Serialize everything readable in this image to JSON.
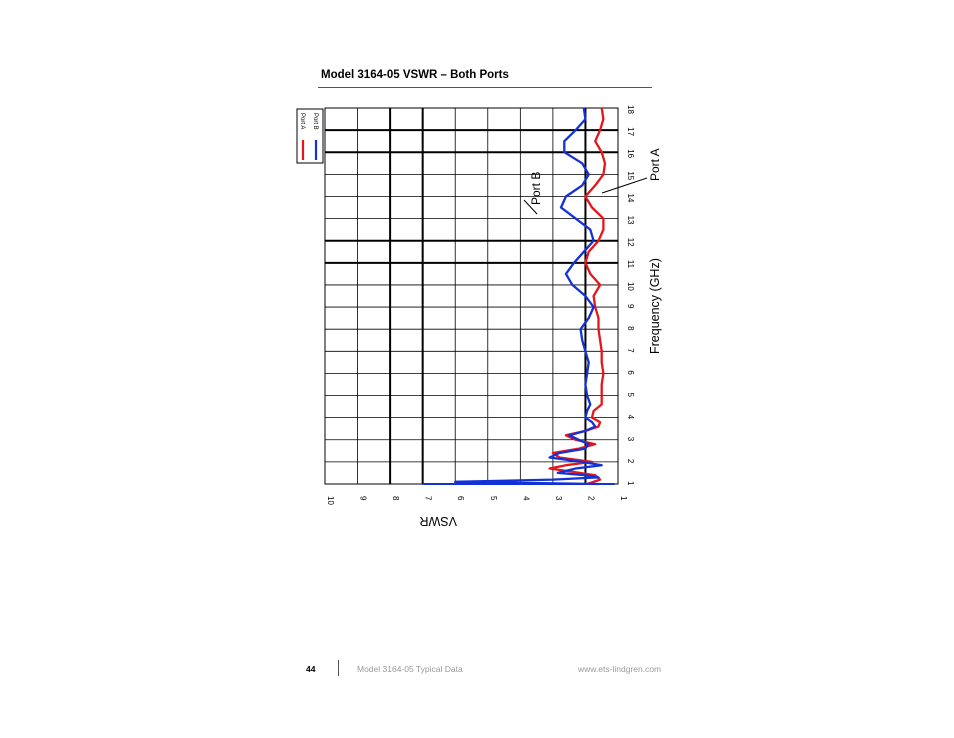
{
  "page": {
    "title": "Model 3164-05 VSWR – Both Ports",
    "footer": {
      "page_number": "44",
      "doc_name": "Model 3164-05 Typical Data",
      "website": "www.ets-lindgren.com"
    }
  },
  "chart_data": {
    "type": "line",
    "orientation": "rotated 90° (frequency axis vertical, VSWR axis horizontal, VSWR increasing to the left)",
    "title": "Model 3164-05 VSWR – Both Ports",
    "xlabel": "Frequency (GHz)",
    "ylabel": "VSWR",
    "xlim": [
      1,
      18
    ],
    "ylim": [
      1,
      10
    ],
    "x_ticks": [
      "1",
      "2",
      "3",
      "4",
      "5",
      "6",
      "7",
      "8",
      "9",
      "10",
      "11",
      "12",
      "13",
      "14",
      "15",
      "16",
      "17",
      "18"
    ],
    "y_ticks": [
      "10",
      "9",
      "8",
      "7",
      "6",
      "5",
      "4",
      "3",
      "2",
      "1"
    ],
    "grid": true,
    "legend": {
      "position": "top-left",
      "entries": [
        "Port A",
        "Port B"
      ]
    },
    "annotations": [
      "Port B",
      "Port A"
    ],
    "colors": {
      "Port A": "#e8141c",
      "Port B": "#1232d8"
    },
    "series": [
      {
        "name": "Port A",
        "points": [
          [
            1.0,
            1.95
          ],
          [
            1.2,
            1.55
          ],
          [
            1.4,
            1.7
          ],
          [
            1.55,
            2.4
          ],
          [
            1.7,
            3.1
          ],
          [
            1.85,
            2.6
          ],
          [
            2.0,
            1.8
          ],
          [
            2.2,
            2.8
          ],
          [
            2.4,
            3.0
          ],
          [
            2.6,
            2.2
          ],
          [
            2.8,
            1.7
          ],
          [
            3.0,
            2.3
          ],
          [
            3.2,
            2.6
          ],
          [
            3.4,
            2.0
          ],
          [
            3.6,
            1.6
          ],
          [
            3.8,
            1.55
          ],
          [
            4.0,
            1.8
          ],
          [
            4.3,
            1.75
          ],
          [
            4.6,
            1.5
          ],
          [
            5.0,
            1.5
          ],
          [
            5.5,
            1.5
          ],
          [
            6.0,
            1.45
          ],
          [
            6.5,
            1.5
          ],
          [
            7.0,
            1.5
          ],
          [
            7.5,
            1.55
          ],
          [
            8.0,
            1.6
          ],
          [
            8.5,
            1.6
          ],
          [
            9.0,
            1.7
          ],
          [
            9.5,
            1.75
          ],
          [
            10.0,
            1.55
          ],
          [
            10.5,
            1.85
          ],
          [
            11.0,
            2.0
          ],
          [
            11.5,
            1.9
          ],
          [
            12.0,
            1.6
          ],
          [
            12.5,
            1.45
          ],
          [
            13.0,
            1.45
          ],
          [
            13.5,
            1.8
          ],
          [
            14.0,
            2.0
          ],
          [
            14.5,
            1.7
          ],
          [
            15.0,
            1.45
          ],
          [
            15.5,
            1.4
          ],
          [
            16.0,
            1.5
          ],
          [
            16.5,
            1.7
          ],
          [
            17.0,
            1.55
          ],
          [
            17.5,
            1.45
          ],
          [
            18.0,
            1.5
          ]
        ]
      },
      {
        "name": "Port B",
        "points": [
          [
            1.0,
            1.6
          ],
          [
            1.1,
            6.0
          ],
          [
            1.2,
            3.0
          ],
          [
            1.3,
            1.6
          ],
          [
            1.4,
            2.0
          ],
          [
            1.5,
            2.85
          ],
          [
            1.7,
            2.3
          ],
          [
            1.85,
            1.5
          ],
          [
            2.0,
            2.1
          ],
          [
            2.2,
            3.1
          ],
          [
            2.4,
            2.8
          ],
          [
            2.6,
            2.0
          ],
          [
            2.8,
            1.9
          ],
          [
            3.0,
            2.2
          ],
          [
            3.2,
            2.5
          ],
          [
            3.4,
            2.0
          ],
          [
            3.6,
            1.7
          ],
          [
            3.8,
            1.8
          ],
          [
            4.0,
            2.0
          ],
          [
            4.3,
            1.95
          ],
          [
            4.6,
            1.85
          ],
          [
            5.0,
            1.95
          ],
          [
            5.5,
            2.0
          ],
          [
            6.0,
            1.95
          ],
          [
            6.5,
            1.9
          ],
          [
            7.0,
            2.0
          ],
          [
            7.5,
            2.1
          ],
          [
            8.0,
            2.15
          ],
          [
            8.5,
            1.9
          ],
          [
            9.0,
            1.75
          ],
          [
            9.5,
            2.0
          ],
          [
            10.0,
            2.4
          ],
          [
            10.5,
            2.6
          ],
          [
            11.0,
            2.35
          ],
          [
            11.5,
            2.05
          ],
          [
            12.0,
            1.75
          ],
          [
            12.5,
            1.85
          ],
          [
            13.0,
            2.3
          ],
          [
            13.5,
            2.75
          ],
          [
            14.0,
            2.6
          ],
          [
            14.5,
            2.1
          ],
          [
            15.0,
            1.9
          ],
          [
            15.5,
            2.1
          ],
          [
            16.0,
            2.65
          ],
          [
            16.5,
            2.65
          ],
          [
            17.0,
            2.3
          ],
          [
            17.5,
            2.0
          ],
          [
            18.0,
            2.05
          ]
        ]
      }
    ]
  }
}
